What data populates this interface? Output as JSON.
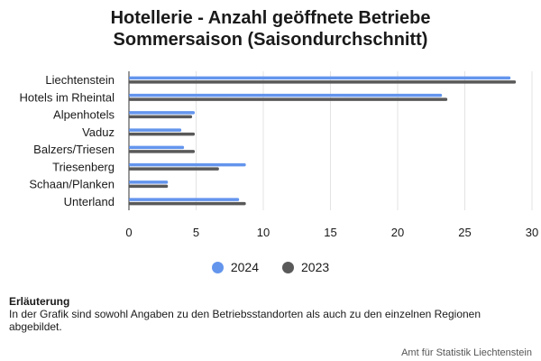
{
  "chart_data": {
    "type": "bar",
    "orientation": "horizontal",
    "title_lines": [
      "Hotellerie - Anzahl geöffnete Betriebe",
      "Sommersaison (Saisondurchschnitt)"
    ],
    "categories": [
      "Liechtenstein",
      "Hotels im Rheintal",
      "Alpenhotels",
      "Vaduz",
      "Balzers/Triesen",
      "Triesenberg",
      "Schaan/Planken",
      "Unterland"
    ],
    "series": [
      {
        "name": "2024",
        "color": "#6495ED",
        "values": [
          28.4,
          23.3,
          4.9,
          3.9,
          4.1,
          8.7,
          2.9,
          8.2
        ]
      },
      {
        "name": "2023",
        "color": "#595959",
        "values": [
          28.8,
          23.7,
          4.7,
          4.9,
          4.9,
          6.7,
          2.9,
          8.7
        ]
      }
    ],
    "xlim": [
      0,
      30
    ],
    "xticks": [
      0,
      5,
      10,
      15,
      20,
      25,
      30
    ],
    "grid": true,
    "legend_position": "bottom"
  },
  "note": {
    "heading": "Erläuterung",
    "text": "In der Grafik sind sowohl Angaben zu den Betriebsstandorten als auch zu den einzelnen Regionen abgebildet."
  },
  "source": "Amt für Statistik Liechtenstein"
}
